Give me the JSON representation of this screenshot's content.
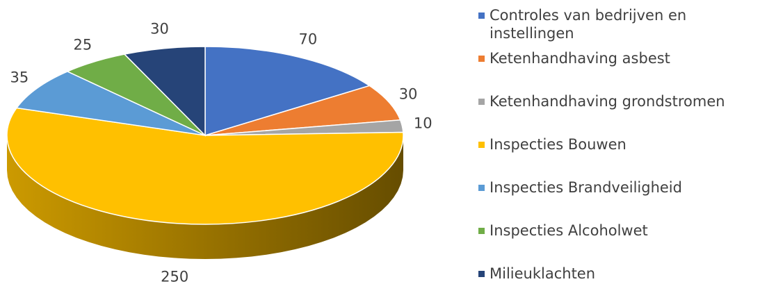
{
  "chart_data": {
    "type": "pie3d",
    "categories": [
      "Controles van bedrijven en instellingen",
      "Ketenhandhaving asbest",
      "Ketenhandhaving grondstromen",
      "Inspecties Bouwen",
      "Inspecties Brandveiligheid",
      "Inspecties Alcoholwet",
      "Milieuklachten"
    ],
    "values": [
      70,
      30,
      10,
      250,
      35,
      25,
      30
    ],
    "colors": [
      "#4472c4",
      "#ed7d31",
      "#a5a5a5",
      "#ffc000",
      "#5b9bd5",
      "#70ad47",
      "#264478"
    ],
    "legend": "right"
  }
}
